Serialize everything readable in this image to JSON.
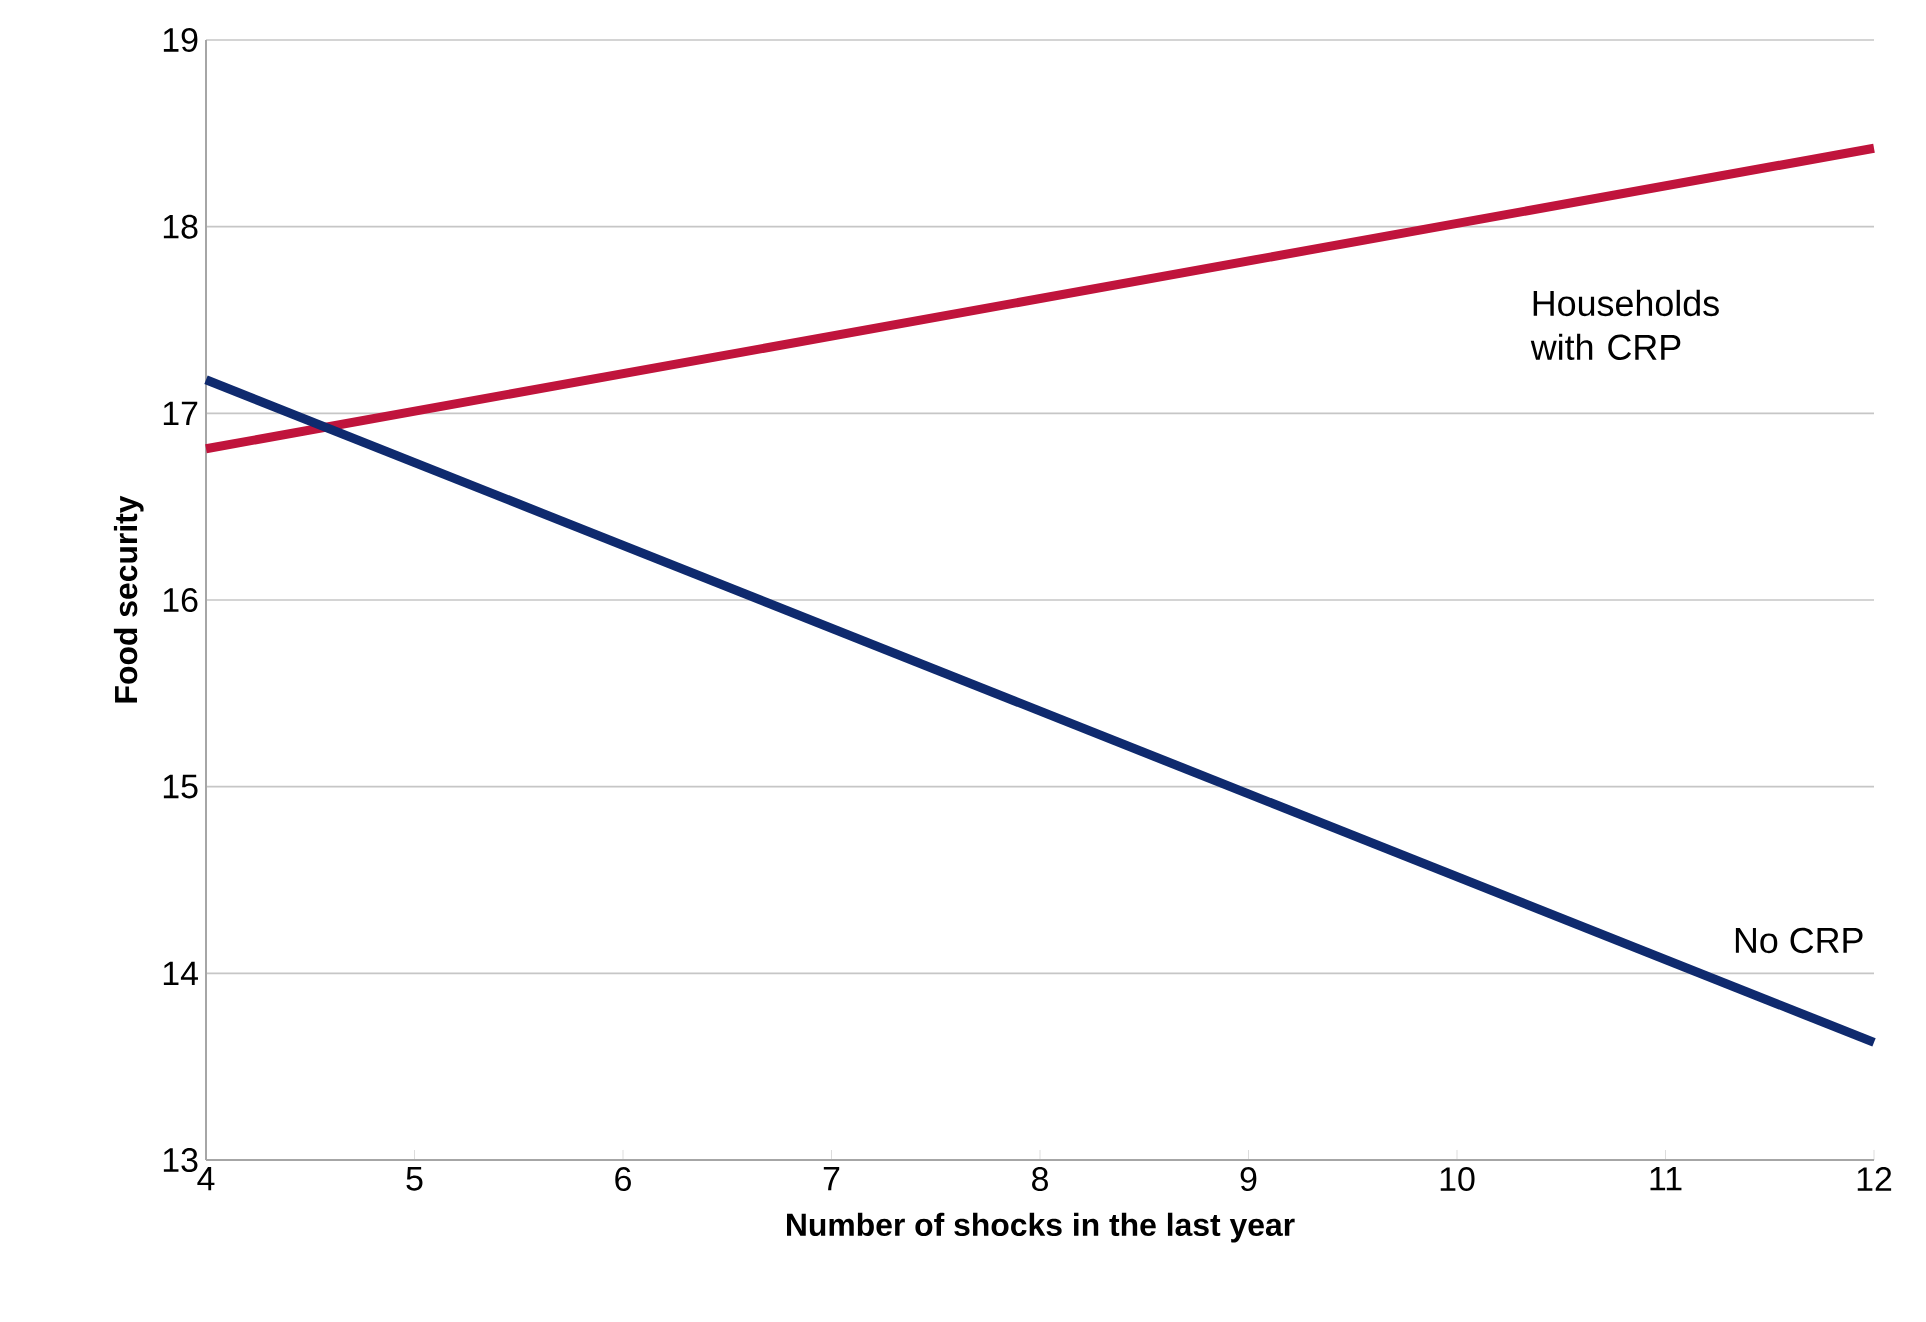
{
  "chart_data": {
    "type": "line",
    "xlabel": "Number of shocks in the last year",
    "ylabel": "Food security",
    "x": [
      4,
      12
    ],
    "series": [
      {
        "name": "Households with CRP",
        "color": "#c0143c",
        "values": [
          16.81,
          18.42
        ]
      },
      {
        "name": "No CRP",
        "color": "#0f2a6e",
        "values": [
          17.18,
          13.63
        ]
      }
    ],
    "xlim": [
      4,
      12
    ],
    "ylim": [
      13,
      19
    ],
    "xticks": [
      4,
      5,
      6,
      7,
      8,
      9,
      10,
      11,
      12
    ],
    "yticks": [
      13,
      14,
      15,
      16,
      17,
      18,
      19
    ],
    "grid": "y",
    "marker": "none",
    "line_style": "solid"
  }
}
